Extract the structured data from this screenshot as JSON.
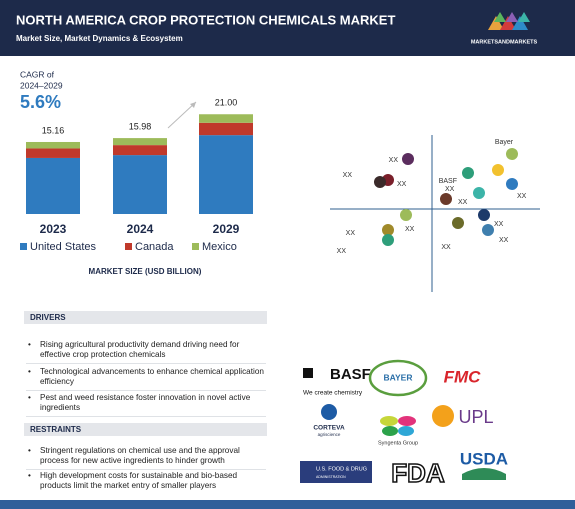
{
  "header": {
    "title": "NORTH AMERICA CROP PROTECTION CHEMICALS MARKET",
    "subtitle": "Market Size, Market Dynamics & Ecosystem",
    "brand": "MARKETSANDMARKETS"
  },
  "cagr": {
    "label_1": "CAGR of",
    "label_2": "2024–2029",
    "value": "5.6%"
  },
  "chart_data": {
    "type": "stacked-bar",
    "categories": [
      "2023",
      "2024",
      "2029"
    ],
    "series": [
      {
        "name": "United States",
        "color": "#2f7bbf",
        "values": [
          11.8,
          12.4,
          16.6
        ]
      },
      {
        "name": "Canada",
        "color": "#c0392b",
        "values": [
          2.0,
          2.1,
          2.6
        ]
      },
      {
        "name": "Mexico",
        "color": "#9dbb5a",
        "values": [
          1.36,
          1.48,
          1.8
        ]
      }
    ],
    "totals": [
      15.16,
      15.98,
      21.0
    ],
    "totals_value_labels": [
      "15.16",
      "15.98",
      "21.00"
    ],
    "x_label": "MARKET SIZE (USD BILLION)"
  },
  "ecosystem": {
    "nodes": [
      "XX",
      "XX",
      "XX",
      "Bayer",
      "",
      "BASF",
      "XX",
      "XX",
      "XX",
      "XX",
      "XX",
      "XX",
      "XX",
      "XX",
      "XX"
    ]
  },
  "drivers": {
    "heading": "DRIVERS",
    "items": [
      "Rising agricultural productivity demand driving need for effective crop protection chemicals",
      "Technological advancements to enhance chemical application efficiency",
      "Pest and weed resistance foster innovation in novel active ingredients"
    ]
  },
  "restraints": {
    "heading": "RESTRAINTS",
    "items": [
      "Stringent regulations on chemical use and the approval process for new active ingredients to hinder growth",
      "High development costs for sustainable and bio-based products limit the market entry of smaller players"
    ]
  },
  "logos": {
    "basf": "BASF",
    "basf_tagline": "We create chemistry",
    "bayer": "BAYER",
    "fmc": "FMC",
    "corteva": "CORTEVA",
    "corteva_sub": "agriscience",
    "syngenta": "Syngenta Group",
    "upl": "UPL",
    "fda_long": "U.S. FOOD & DRUG",
    "fda_long_sub": "ADMINISTRATION",
    "fda": "FDA",
    "usda": "USDA"
  }
}
